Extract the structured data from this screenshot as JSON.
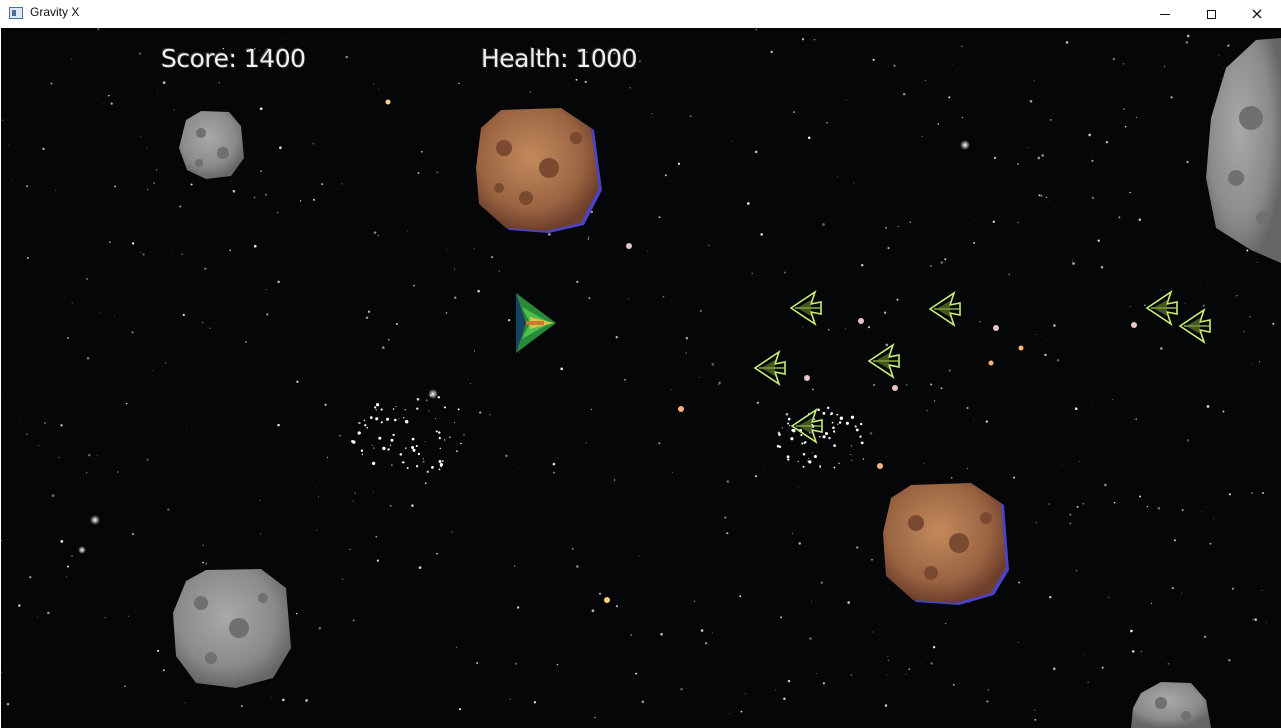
{
  "window": {
    "title": "Gravity X",
    "controls": {
      "minimize": "minimize",
      "maximize": "maximize",
      "close": "×"
    }
  },
  "hud": {
    "score_label": "Score: 1400",
    "health_label": "Health: 1000"
  },
  "colors": {
    "space": "#050608",
    "hud_text": "#f0f0f0",
    "asteroid_brown": "#8a5a3c",
    "asteroid_grey": "#8f8f8f",
    "enemy_green": "#b6e36a",
    "player_green": "#2f9e3f"
  },
  "icons": {
    "app": "window-icon",
    "minimize": "minimize-icon",
    "maximize": "maximize-icon",
    "close": "close-icon"
  }
}
